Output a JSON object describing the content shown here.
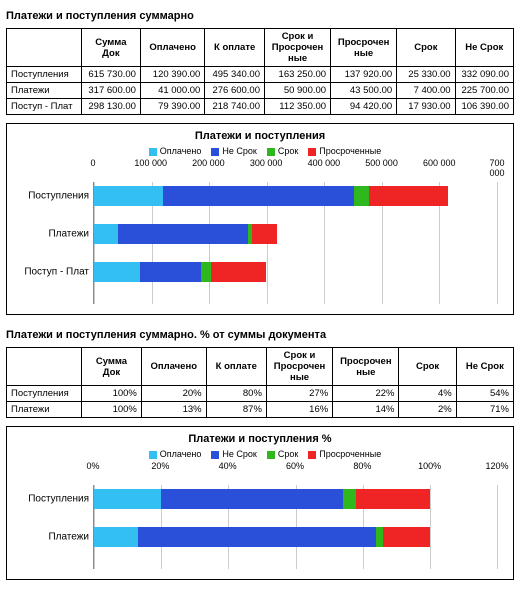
{
  "colors": {
    "oplacheno": "#33bff2",
    "nesrok": "#2a4fd8",
    "srok": "#2fb81e",
    "prosr": "#ef2424",
    "grid": "#cccccc",
    "border": "#000000",
    "bg": "#ffffff"
  },
  "section1": {
    "title": "Платежи и поступления суммарно",
    "table": {
      "headers": [
        "",
        "Сумма Док",
        "Оплачено",
        "К оплате",
        "Срок и\nПросрочен\nные",
        "Просрочен\nные",
        "Срок",
        "Не Срок"
      ],
      "rows": [
        {
          "label": "Поступления",
          "cells": [
            "615 730.00",
            "120 390.00",
            "495 340.00",
            "163 250.00",
            "137 920.00",
            "25 330.00",
            "332 090.00"
          ]
        },
        {
          "label": "Платежи",
          "cells": [
            "317 600.00",
            "41 000.00",
            "276 600.00",
            "50 900.00",
            "43 500.00",
            "7 400.00",
            "225 700.00"
          ]
        },
        {
          "label": "Поступ - Плат",
          "cells": [
            "298 130.00",
            "79 390.00",
            "218 740.00",
            "112 350.00",
            "94 420.00",
            "17 930.00",
            "106 390.00"
          ]
        }
      ]
    },
    "chart": {
      "title": "Платежи и поступления",
      "legend": [
        {
          "label": "Оплачено",
          "colorKey": "oplacheno"
        },
        {
          "label": "Не Срок",
          "colorKey": "nesrok"
        },
        {
          "label": "Срок",
          "colorKey": "srok"
        },
        {
          "label": "Просроченные",
          "colorKey": "prosr"
        }
      ],
      "xmax": 700000,
      "xtick_step": 100000,
      "xtick_labels": [
        "0",
        "100 000",
        "200 000",
        "300 000",
        "400 000",
        "500 000",
        "600 000",
        "700 000"
      ],
      "bar_fontsize": 10,
      "series": [
        {
          "label": "Поступления",
          "segments": [
            {
              "colorKey": "oplacheno",
              "value": 120390
            },
            {
              "colorKey": "nesrok",
              "value": 332090
            },
            {
              "colorKey": "srok",
              "value": 25330
            },
            {
              "colorKey": "prosr",
              "value": 137920
            }
          ]
        },
        {
          "label": "Платежи",
          "segments": [
            {
              "colorKey": "oplacheno",
              "value": 41000
            },
            {
              "colorKey": "nesrok",
              "value": 225700
            },
            {
              "colorKey": "srok",
              "value": 7400
            },
            {
              "colorKey": "prosr",
              "value": 43500
            }
          ]
        },
        {
          "label": "Поступ - Плат",
          "segments": [
            {
              "colorKey": "oplacheno",
              "value": 79390
            },
            {
              "colorKey": "nesrok",
              "value": 106390
            },
            {
              "colorKey": "srok",
              "value": 17930
            },
            {
              "colorKey": "prosr",
              "value": 94420
            }
          ]
        }
      ]
    }
  },
  "section2": {
    "title": "Платежи и поступления суммарно. % от суммы документа",
    "table": {
      "headers": [
        "",
        "Сумма Док",
        "Оплачено",
        "К оплате",
        "Срок и\nПросрочен\nные",
        "Просрочен\nные",
        "Срок",
        "Не Срок"
      ],
      "rows": [
        {
          "label": "Поступления",
          "cells": [
            "100%",
            "20%",
            "80%",
            "27%",
            "22%",
            "4%",
            "54%"
          ]
        },
        {
          "label": "Платежи",
          "cells": [
            "100%",
            "13%",
            "87%",
            "16%",
            "14%",
            "2%",
            "71%"
          ]
        }
      ]
    },
    "chart": {
      "title": "Платежи и поступления %",
      "legend": [
        {
          "label": "Оплачено",
          "colorKey": "oplacheno"
        },
        {
          "label": "Не Срок",
          "colorKey": "nesrok"
        },
        {
          "label": "Срок",
          "colorKey": "srok"
        },
        {
          "label": "Просроченные",
          "colorKey": "prosr"
        }
      ],
      "xmax": 120,
      "xtick_step": 20,
      "xtick_labels": [
        "0%",
        "20%",
        "40%",
        "60%",
        "80%",
        "100%",
        "120%"
      ],
      "bar_fontsize": 10,
      "series": [
        {
          "label": "Поступления",
          "segments": [
            {
              "colorKey": "oplacheno",
              "value": 20
            },
            {
              "colorKey": "nesrok",
              "value": 54
            },
            {
              "colorKey": "srok",
              "value": 4
            },
            {
              "colorKey": "prosr",
              "value": 22
            }
          ]
        },
        {
          "label": "Платежи",
          "segments": [
            {
              "colorKey": "oplacheno",
              "value": 13
            },
            {
              "colorKey": "nesrok",
              "value": 71
            },
            {
              "colorKey": "srok",
              "value": 2
            },
            {
              "colorKey": "prosr",
              "value": 14
            }
          ]
        }
      ]
    }
  }
}
